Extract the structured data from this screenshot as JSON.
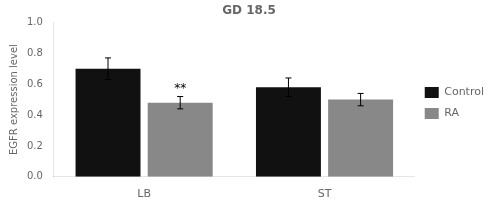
{
  "chart_data": {
    "type": "bar",
    "title": "GD 18.5",
    "ylabel": "EGFR expression level",
    "categories": [
      "LB",
      "ST"
    ],
    "series": [
      {
        "name": "Control",
        "color": "#111111",
        "values": [
          0.7,
          0.58
        ],
        "errors": [
          0.07,
          0.06
        ]
      },
      {
        "name": "RA",
        "color": "#888888",
        "values": [
          0.48,
          0.5
        ],
        "errors": [
          0.04,
          0.04
        ]
      }
    ],
    "ylim": [
      0.0,
      1.0
    ],
    "yticks": [
      {
        "value": 0.0,
        "label": "0.0"
      },
      0.2,
      0.4,
      0.6,
      0.8,
      {
        "value": 1.0,
        "label": "1.0"
      }
    ],
    "annotations": [
      {
        "text": "**",
        "category": "LB",
        "series": "RA"
      }
    ],
    "grid": false,
    "legend": "right"
  }
}
